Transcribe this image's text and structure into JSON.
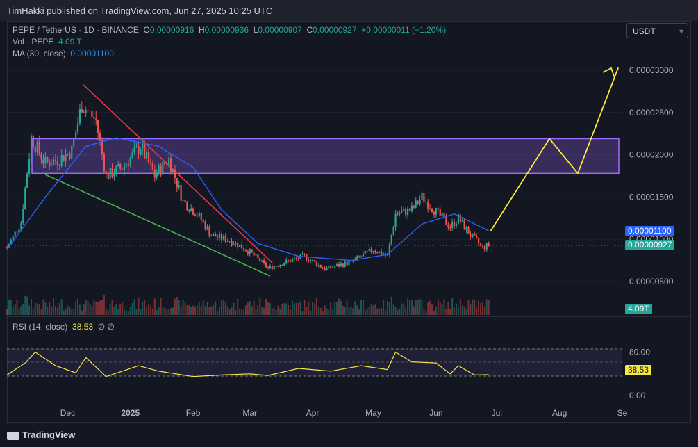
{
  "header": {
    "published": "TimHakki published on TradingView.com, Jun 27, 2025 10:25 UTC"
  },
  "legend": {
    "symbol": "PEPE / TetherUS · 1D · BINANCE",
    "o_label": "O",
    "o": "0.00000916",
    "h_label": "H",
    "h": "0.00000936",
    "l_label": "L",
    "l": "0.00000907",
    "c_label": "C",
    "c": "0.00000927",
    "change": "+0.00000011 (+1.20%)",
    "vol_label": "Vol · PEPE",
    "vol": "4.09 T",
    "ma_label": "MA (30, close)",
    "ma": "0.00001100",
    "rsi_label": "RSI (14, close)",
    "rsi": "38.53",
    "rsi_extra": "∅ ∅"
  },
  "currency_button": "USDT",
  "price_tags": {
    "ma": "0.00001100",
    "last": "0.00000927",
    "volume": "4.09T",
    "rsi": "38.53"
  },
  "colors": {
    "up": "#26a69a",
    "down": "#ef5350",
    "ma": "#2962ff",
    "rsi": "#f5e642",
    "zone": "#7e57c2",
    "projection": "#ffeb3b",
    "trend_top": "#f23645",
    "trend_bottom": "#4caf50"
  },
  "footer": {
    "brand": "TradingView"
  },
  "chart_data": [
    {
      "type": "candlestick",
      "title": "PEPE / TetherUS · 1D · BINANCE",
      "x_ticks": [
        "Dec",
        "2025",
        "Feb",
        "Mar",
        "Apr",
        "May",
        "Jun",
        "Jul",
        "Aug",
        "Se"
      ],
      "y_ticks": [
        "0.00000500",
        "0.00001000",
        "0.00001500",
        "0.00002000",
        "0.00002500",
        "0.00003000"
      ],
      "ylim": [
        3.5e-06,
        3.25e-05
      ],
      "resistance_zone": [
        1.78e-05,
        2.19e-05
      ],
      "price_path": [
        [
          "2024-11-01",
          9e-06
        ],
        [
          "2024-11-08",
          1.2e-05
        ],
        [
          "2024-11-13",
          2.2e-05
        ],
        [
          "2024-11-20",
          1.9e-05
        ],
        [
          "2024-11-27",
          1.95e-05
        ],
        [
          "2024-12-03",
          2.05e-05
        ],
        [
          "2024-12-08",
          2.6e-05
        ],
        [
          "2024-12-15",
          2.4e-05
        ],
        [
          "2024-12-20",
          1.75e-05
        ],
        [
          "2024-12-28",
          1.85e-05
        ],
        [
          "2025-01-06",
          2.1e-05
        ],
        [
          "2025-01-13",
          1.75e-05
        ],
        [
          "2025-01-20",
          1.95e-05
        ],
        [
          "2025-01-27",
          1.45e-05
        ],
        [
          "2025-02-03",
          1.3e-05
        ],
        [
          "2025-02-10",
          1.05e-05
        ],
        [
          "2025-02-20",
          9.8e-06
        ],
        [
          "2025-03-01",
          8.5e-06
        ],
        [
          "2025-03-10",
          6.6e-06
        ],
        [
          "2025-03-20",
          7.4e-06
        ],
        [
          "2025-03-28",
          8e-06
        ],
        [
          "2025-04-07",
          6.5e-06
        ],
        [
          "2025-04-20",
          7.3e-06
        ],
        [
          "2025-05-01",
          8.8e-06
        ],
        [
          "2025-05-08",
          8e-06
        ],
        [
          "2025-05-12",
          1.3e-05
        ],
        [
          "2025-05-20",
          1.35e-05
        ],
        [
          "2025-05-25",
          1.5e-05
        ],
        [
          "2025-06-02",
          1.3e-05
        ],
        [
          "2025-06-08",
          1.15e-05
        ],
        [
          "2025-06-12",
          1.25e-05
        ],
        [
          "2025-06-18",
          1.05e-05
        ],
        [
          "2025-06-24",
          9e-06
        ],
        [
          "2025-06-27",
          9.3e-06
        ]
      ],
      "ma30": [
        [
          "2024-11-01",
          8.8e-06
        ],
        [
          "2024-11-20",
          1.5e-05
        ],
        [
          "2024-12-10",
          2.1e-05
        ],
        [
          "2024-12-25",
          2.2e-05
        ],
        [
          "2025-01-15",
          2.1e-05
        ],
        [
          "2025-02-01",
          1.85e-05
        ],
        [
          "2025-02-15",
          1.35e-05
        ],
        [
          "2025-03-05",
          9.5e-06
        ],
        [
          "2025-03-25",
          8e-06
        ],
        [
          "2025-04-20",
          7.5e-06
        ],
        [
          "2025-05-08",
          8.2e-06
        ],
        [
          "2025-05-25",
          1.18e-05
        ],
        [
          "2025-06-10",
          1.3e-05
        ],
        [
          "2025-06-27",
          1.1e-05
        ]
      ],
      "projection": [
        [
          "2025-06-28",
          1.1e-05
        ],
        [
          "2025-07-27",
          2.19e-05
        ],
        [
          "2025-08-10",
          1.78e-05
        ],
        [
          "2025-08-30",
          3.03e-05
        ]
      ]
    },
    {
      "type": "line",
      "title": "RSI (14, close)",
      "y_ticks": [
        "0.00",
        "80.00"
      ],
      "ylim": [
        0,
        100
      ],
      "bands": [
        30,
        50,
        70
      ],
      "values": [
        [
          "2024-11-01",
          38
        ],
        [
          "2024-11-10",
          60
        ],
        [
          "2024-11-15",
          80
        ],
        [
          "2024-11-25",
          55
        ],
        [
          "2024-12-05",
          42
        ],
        [
          "2024-12-10",
          70
        ],
        [
          "2024-12-20",
          35
        ],
        [
          "2025-01-05",
          55
        ],
        [
          "2025-01-15",
          45
        ],
        [
          "2025-02-01",
          35
        ],
        [
          "2025-02-15",
          38
        ],
        [
          "2025-03-01",
          40
        ],
        [
          "2025-03-10",
          37
        ],
        [
          "2025-03-25",
          50
        ],
        [
          "2025-04-10",
          45
        ],
        [
          "2025-04-25",
          55
        ],
        [
          "2025-05-08",
          48
        ],
        [
          "2025-05-12",
          80
        ],
        [
          "2025-05-20",
          62
        ],
        [
          "2025-06-01",
          60
        ],
        [
          "2025-06-08",
          40
        ],
        [
          "2025-06-12",
          55
        ],
        [
          "2025-06-20",
          38
        ],
        [
          "2025-06-27",
          38.53
        ]
      ]
    }
  ]
}
